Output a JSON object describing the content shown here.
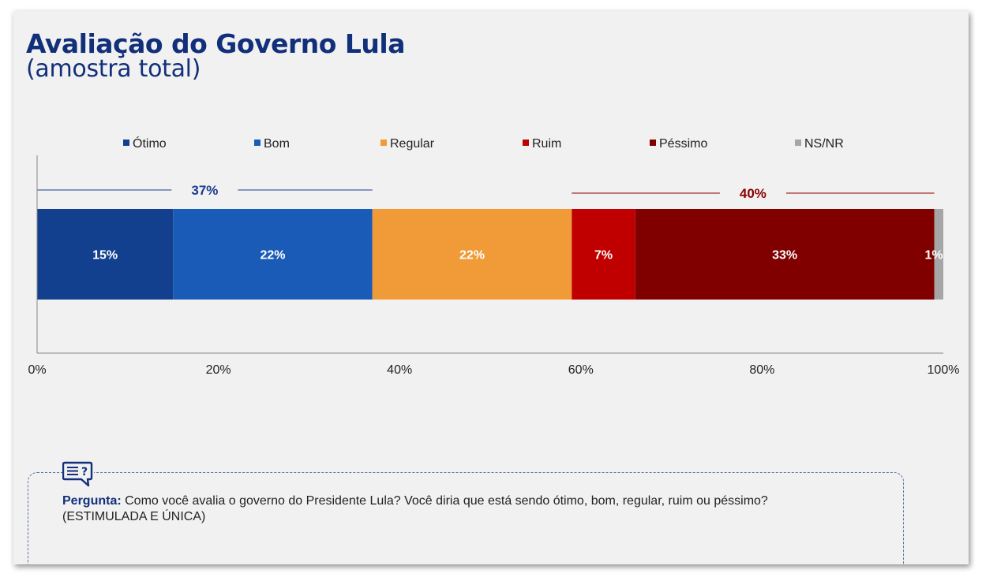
{
  "slide": {
    "title": "Avaliação do Governo Lula",
    "subtitle": "(amostra total)"
  },
  "chart_data": {
    "type": "bar",
    "orientation": "horizontal",
    "stacked": "percent",
    "categories": [
      ""
    ],
    "series": [
      {
        "name": "Ótimo",
        "values": [
          15
        ],
        "color": "#12408f",
        "label": "15%"
      },
      {
        "name": "Bom",
        "values": [
          22
        ],
        "color": "#1a5bb7",
        "label": "22%"
      },
      {
        "name": "Regular",
        "values": [
          22
        ],
        "color": "#f19a38",
        "label": "22%"
      },
      {
        "name": "Ruim",
        "values": [
          7
        ],
        "color": "#c00000",
        "label": "7%"
      },
      {
        "name": "Péssimo",
        "values": [
          33
        ],
        "color": "#800000",
        "label": "33%"
      },
      {
        "name": "NS/NR",
        "values": [
          1
        ],
        "color": "#a6a6a6",
        "label": "1%"
      }
    ],
    "xlim": [
      0,
      100
    ],
    "x_ticks": [
      0,
      20,
      40,
      60,
      80,
      100
    ],
    "x_tick_labels": [
      "0%",
      "20%",
      "40%",
      "60%",
      "80%",
      "100%"
    ],
    "legend_position": "top",
    "grid": false,
    "annotations": [
      {
        "text": "37%",
        "from": 0,
        "to": 37,
        "color": "#1a3a8f"
      },
      {
        "text": "40%",
        "from": 59,
        "to": 99,
        "color": "#8b0000"
      }
    ]
  },
  "question": {
    "label": "Pergunta:",
    "text": " Como você avalia o governo do Presidente Lula? Você diria que está sendo ótimo, bom, regular, ruim ou péssimo?",
    "note": "(ESTIMULADA E ÚNICA)",
    "icon": "question-chat-icon"
  }
}
